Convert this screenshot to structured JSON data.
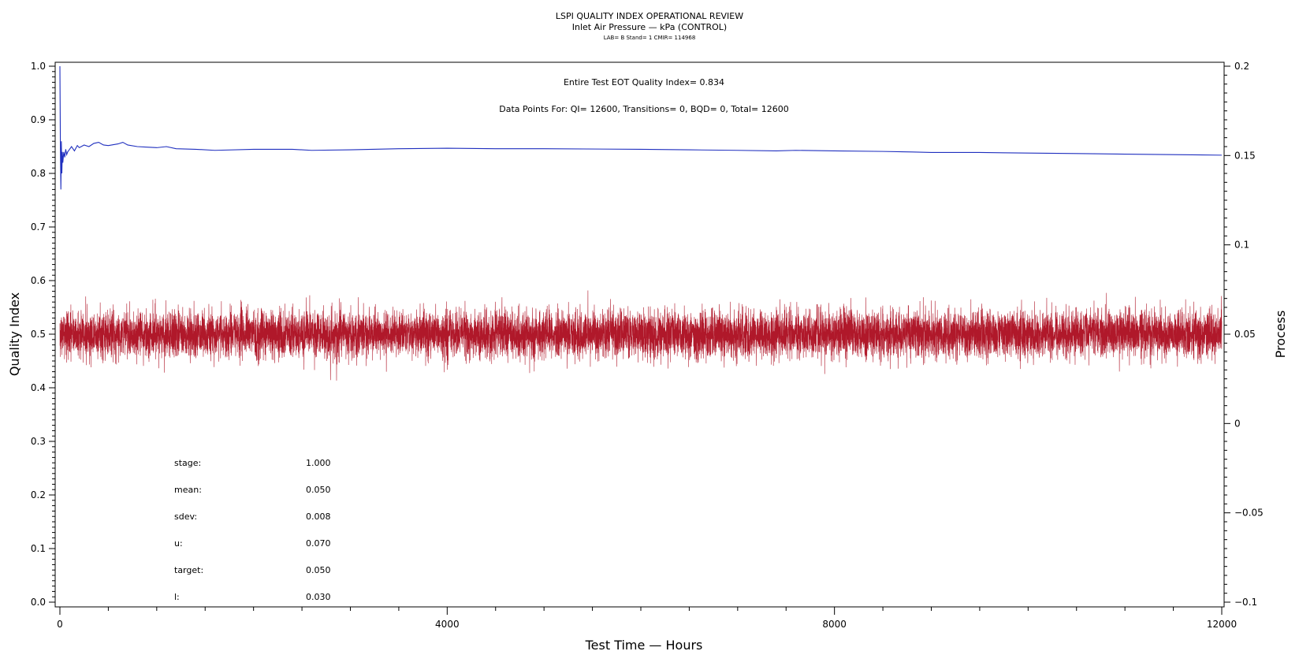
{
  "chart_data": {
    "type": "line",
    "title": "LSPI QUALITY INDEX OPERATIONAL REVIEW",
    "subtitle": "Inlet Air Pressure — kPa (CONTROL)",
    "subtitle2": "LAB= B Stand= 1 CMIR= 114968",
    "xlabel": "Test Time — Hours",
    "ylabel_left": "Quality Index",
    "ylabel_right": "Process",
    "xlim": [
      0,
      12000
    ],
    "ylim_left": [
      0.0,
      1.0
    ],
    "ylim_right": [
      -0.1,
      0.2
    ],
    "x_ticks": [
      0,
      4000,
      8000,
      12000
    ],
    "y_ticks_left": [
      0.0,
      0.1,
      0.2,
      0.3,
      0.4,
      0.5,
      0.6,
      0.7,
      0.8,
      0.9,
      1.0
    ],
    "y_ticks_right": [
      -0.1,
      -0.05,
      0,
      0.05,
      0.1,
      0.15,
      0.2
    ],
    "y_tick_labels_right": [
      "−0.1",
      "−0.05",
      "0",
      "0.05",
      "0.1",
      "0.15",
      "0.2"
    ],
    "annotations": {
      "eot": "Entire Test EOT Quality Index=   0.834",
      "points": "Data Points For: QI= 12600, Transitions=     0, BQD=     0, Total= 12600"
    },
    "series": [
      {
        "axis": "left",
        "color": "#1f2fbf",
        "x": [
          0,
          5,
          10,
          15,
          20,
          25,
          30,
          40,
          50,
          60,
          70,
          80,
          100,
          120,
          150,
          180,
          200,
          250,
          300,
          350,
          400,
          450,
          500,
          600,
          650,
          700,
          800,
          900,
          1000,
          1100,
          1200,
          1400,
          1600,
          2000,
          2400,
          2600,
          3000,
          3500,
          4000,
          4500,
          5000,
          6000,
          6500,
          7000,
          7400,
          7600,
          8000,
          8500,
          8800,
          9000,
          9500,
          10000,
          10500,
          11000,
          11500,
          12000
        ],
        "values": [
          1.0,
          0.85,
          0.77,
          0.86,
          0.8,
          0.84,
          0.82,
          0.84,
          0.83,
          0.845,
          0.835,
          0.84,
          0.845,
          0.85,
          0.842,
          0.852,
          0.848,
          0.853,
          0.85,
          0.856,
          0.858,
          0.853,
          0.852,
          0.855,
          0.858,
          0.853,
          0.85,
          0.849,
          0.848,
          0.85,
          0.846,
          0.845,
          0.843,
          0.845,
          0.845,
          0.843,
          0.844,
          0.846,
          0.847,
          0.846,
          0.846,
          0.845,
          0.844,
          0.843,
          0.842,
          0.843,
          0.842,
          0.841,
          0.84,
          0.839,
          0.839,
          0.838,
          0.837,
          0.836,
          0.835,
          0.834
        ]
      },
      {
        "axis": "right",
        "color": "#b0182a",
        "samples": 12600,
        "mean": 0.05,
        "sdev": 0.008,
        "min": 0.024,
        "max": 0.077
      }
    ],
    "stats": [
      {
        "label": "stage:",
        "value": "1.000"
      },
      {
        "label": "mean:",
        "value": "0.050"
      },
      {
        "label": "sdev:",
        "value": "0.008"
      },
      {
        "label": "u:",
        "value": "0.070"
      },
      {
        "label": "target:",
        "value": "0.050"
      },
      {
        "label": "l:",
        "value": "0.030"
      }
    ]
  }
}
